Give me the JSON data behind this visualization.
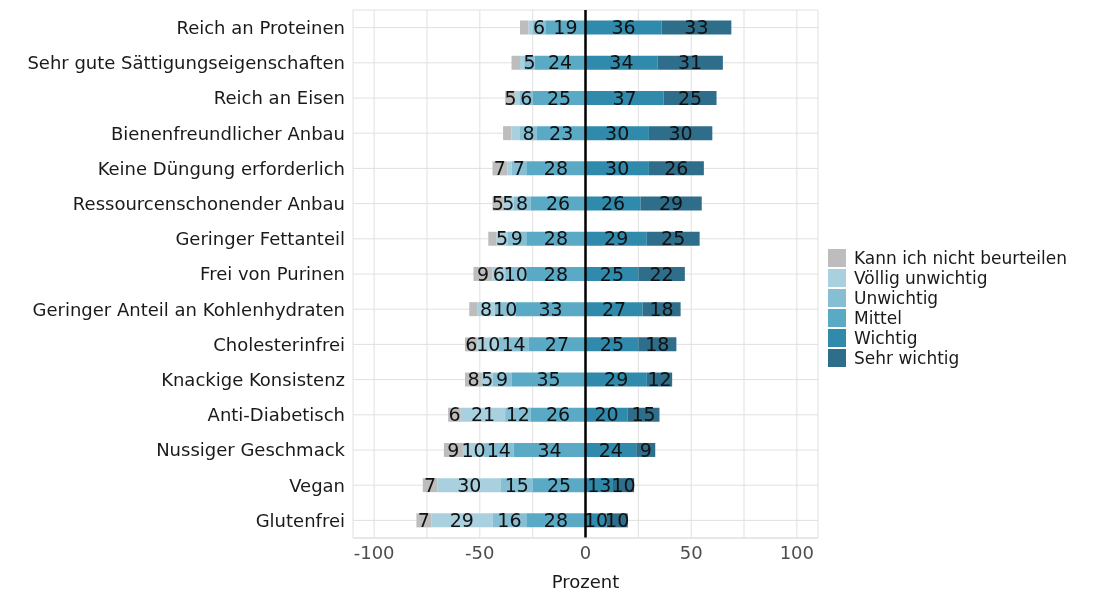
{
  "chart_data": {
    "type": "bar",
    "orientation": "horizontal",
    "xlabel": "Prozent",
    "categories": [
      "Reich an Proteinen",
      "Sehr gute Sättigungseigenschaften",
      "Reich an Eisen",
      "Bienenfreundlicher Anbau",
      "Keine Düngung erforderlich",
      "Ressourcenschonender Anbau",
      "Geringer Fettanteil",
      "Frei von Purinen",
      "Geringer Anteil an Kohlenhydraten",
      "Cholesterinfrei",
      "Knackige Konsistenz",
      "Anti-Diabetisch",
      "Nussiger Geschmack",
      "Vegan",
      "Glutenfrei"
    ],
    "series": [
      {
        "name": "Kann ich nicht beurteilen",
        "color": "#bdbdbd",
        "values": [
          4,
          4,
          5,
          4,
          7,
          5,
          4,
          9,
          4,
          6,
          8,
          6,
          9,
          7,
          7
        ],
        "base": [
          -31,
          -35,
          -38,
          -39,
          -44,
          -44,
          -46,
          -53,
          -55,
          -57,
          -57,
          -65,
          -67,
          -77,
          -80
        ],
        "value_labels": [
          null,
          null,
          "5",
          null,
          "7",
          "5",
          null,
          "9",
          null,
          "6",
          "8",
          "6",
          "9",
          "7",
          "7"
        ]
      },
      {
        "name": "Völlig unwichtig",
        "color": "#a9d0de",
        "values": [
          2,
          2,
          2,
          4,
          2,
          5,
          5,
          6,
          8,
          10,
          5,
          21,
          10,
          30,
          29
        ],
        "base": [
          -27,
          -31,
          -33,
          -35,
          -37,
          -39,
          -42,
          -44,
          -51,
          -51,
          -49,
          -59,
          -58,
          -70,
          -73
        ],
        "value_labels": [
          null,
          null,
          null,
          null,
          null,
          "5",
          "5",
          "6",
          "8",
          "10",
          "5",
          "21",
          "10",
          "30",
          "29"
        ]
      },
      {
        "name": "Unwichtig",
        "color": "#86bfd4",
        "values": [
          6,
          5,
          6,
          8,
          7,
          8,
          9,
          10,
          10,
          14,
          9,
          12,
          14,
          15,
          16
        ],
        "base": [
          -25,
          -29,
          -31,
          -31,
          -35,
          -34,
          -37,
          -38,
          -43,
          -41,
          -44,
          -38,
          -48,
          -40,
          -44
        ],
        "value_labels": [
          "6",
          "5",
          "6",
          "8",
          "7",
          "8",
          "9",
          "10",
          "10",
          "14",
          "9",
          "12",
          "14",
          "15",
          "16"
        ]
      },
      {
        "name": "Mittel",
        "color": "#5aaac6",
        "values": [
          19,
          24,
          25,
          23,
          28,
          26,
          28,
          28,
          33,
          27,
          35,
          26,
          34,
          25,
          28
        ],
        "base": [
          -19,
          -24,
          -25,
          -23,
          -28,
          -26,
          -28,
          -28,
          -33,
          -27,
          -35,
          -26,
          -34,
          -25,
          -28
        ],
        "value_labels": [
          "19",
          "24",
          "25",
          "23",
          "28",
          "26",
          "28",
          "28",
          "33",
          "27",
          "35",
          "26",
          "34",
          "25",
          "28"
        ]
      },
      {
        "name": "Wichtig",
        "color": "#2f8aab",
        "values": [
          36,
          34,
          37,
          30,
          30,
          26,
          29,
          25,
          27,
          25,
          29,
          20,
          24,
          13,
          10
        ],
        "base": [
          0,
          0,
          0,
          0,
          0,
          0,
          0,
          0,
          0,
          0,
          0,
          0,
          0,
          0,
          0
        ],
        "value_labels": [
          "36",
          "34",
          "37",
          "30",
          "30",
          "26",
          "29",
          "25",
          "27",
          "25",
          "29",
          "20",
          "24",
          "13",
          "10"
        ]
      },
      {
        "name": "Sehr wichtig",
        "color": "#2e6e8a",
        "values": [
          33,
          31,
          25,
          30,
          26,
          29,
          25,
          22,
          18,
          18,
          12,
          15,
          9,
          10,
          10
        ],
        "base": [
          36,
          34,
          37,
          30,
          30,
          26,
          29,
          25,
          27,
          25,
          29,
          20,
          24,
          13,
          10
        ],
        "value_labels": [
          "33",
          "31",
          "25",
          "30",
          "26",
          "29",
          "25",
          "22",
          "18",
          "18",
          "12",
          "15",
          "9",
          "10",
          "10"
        ]
      }
    ],
    "xlim": [
      -110,
      110
    ],
    "xticks": [
      -100,
      {
        "value": -75,
        "label": null
      },
      -50,
      {
        "value": -25,
        "label": null
      },
      0,
      {
        "value": 25,
        "label": null
      },
      50,
      {
        "value": 75,
        "label": null
      },
      100
    ],
    "ref_lines": [
      {
        "axis": "x",
        "value": 0,
        "color": "#000000"
      }
    ],
    "grid": true,
    "legend": "right"
  }
}
